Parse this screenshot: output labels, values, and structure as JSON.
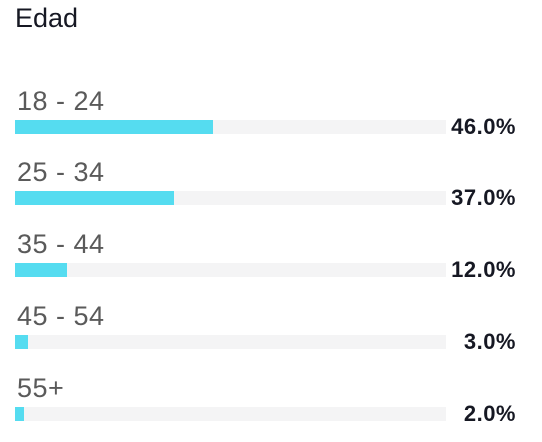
{
  "title": "Edad",
  "chart_data": {
    "type": "bar",
    "title": "Edad",
    "categories": [
      "18 - 24",
      "25 - 34",
      "35 - 44",
      "45 - 54",
      "55+"
    ],
    "values": [
      46.0,
      37.0,
      12.0,
      3.0,
      2.0
    ],
    "value_labels": [
      "46.0%",
      "37.0%",
      "12.0%",
      "3.0%",
      "2.0%"
    ],
    "unit": "%",
    "orientation": "horizontal",
    "xlim": [
      0,
      100
    ],
    "colors": {
      "bar": "#55dcf0",
      "track": "#f4f4f5",
      "text": "#161823",
      "label": "#5a5a5a"
    }
  }
}
